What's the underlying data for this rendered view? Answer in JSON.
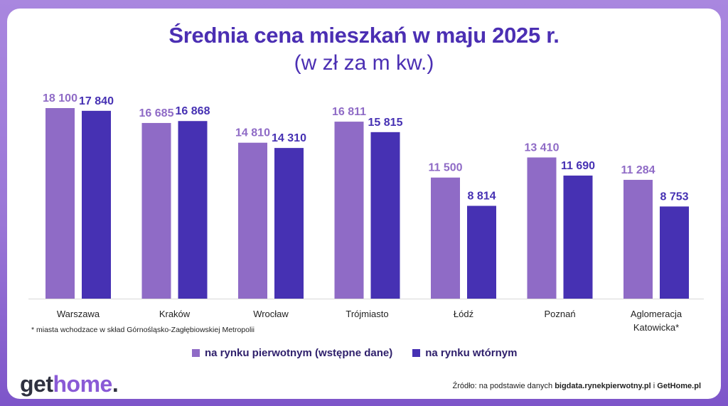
{
  "title": "Średnia cena mieszkań w maju 2025 r.",
  "subtitle": "(w zł za m kw.)",
  "chart_data": {
    "type": "bar",
    "title": "Średnia cena mieszkań w maju 2025 r.",
    "subtitle": "(w zł za m kw.)",
    "categories": [
      "Warszawa",
      "Kraków",
      "Wrocław",
      "Trójmiasto",
      "Łódź",
      "Poznań",
      "Aglomeracja Katowicka*"
    ],
    "category_lines": [
      [
        "Warszawa"
      ],
      [
        "Kraków"
      ],
      [
        "Wrocław"
      ],
      [
        "Trójmiasto"
      ],
      [
        "Łódź"
      ],
      [
        "Poznań"
      ],
      [
        "Aglomeracja",
        "Katowicka*"
      ]
    ],
    "series": [
      {
        "name": "na rynku pierwotnym (wstępne dane)",
        "color": "#8f6bc6",
        "values": [
          18100,
          16685,
          14810,
          16811,
          11500,
          13410,
          11284
        ],
        "labels": [
          "18 100",
          "16 685",
          "14 810",
          "16 811",
          "11 500",
          "13 410",
          "11 284"
        ]
      },
      {
        "name": "na rynku wtórnym",
        "color": "#4631b3",
        "values": [
          17840,
          16868,
          14310,
          15815,
          8814,
          11690,
          8753
        ],
        "labels": [
          "17 840",
          "16 868",
          "14 310",
          "15 815",
          "8 814",
          "11 690",
          "8 753"
        ]
      }
    ],
    "xlabel": "",
    "ylabel": "",
    "ylim": [
      0,
      18100
    ],
    "legend_position": "bottom",
    "grid": false
  },
  "footnote": "* miasta wchodzace w skład Górnośląsko-Zagłębiowskiej Metropolii",
  "logo": {
    "get": "get",
    "home": "home",
    "dot": "."
  },
  "source": {
    "prefix": "Źródło: na podstawie danych",
    "site1": "bigdata.rynekpierwotny.pl",
    "joiner": "i",
    "site2": "GetHome.pl"
  }
}
